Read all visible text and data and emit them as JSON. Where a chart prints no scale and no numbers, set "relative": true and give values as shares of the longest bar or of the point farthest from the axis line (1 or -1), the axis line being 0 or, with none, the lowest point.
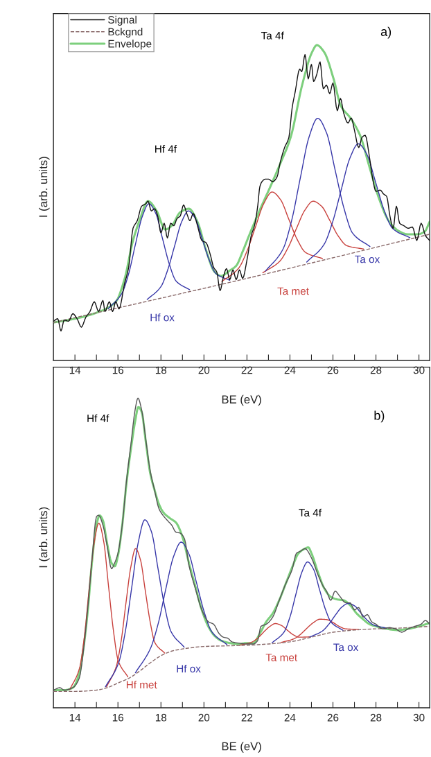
{
  "chart_data": [
    {
      "type": "line",
      "relative": true,
      "xlabel": "BE (eV)",
      "ylabel": "I (arb. units)",
      "xlim": [
        13,
        30.5
      ],
      "xticks": [
        14,
        {
          "value": 15,
          "label": null
        },
        16,
        {
          "value": 17,
          "label": null
        },
        18,
        {
          "value": 19,
          "label": null
        },
        20,
        {
          "value": 21,
          "label": null
        },
        22,
        {
          "value": 23,
          "label": null
        },
        24,
        {
          "value": 25,
          "label": null
        },
        26,
        {
          "value": 27,
          "label": null
        },
        28,
        {
          "value": 29,
          "label": null
        },
        30
      ],
      "legend": "top left",
      "grid": false,
      "marker": "none",
      "annotations": [
        "a)",
        "Hf 4f",
        "Ta 4f",
        "Hf ox",
        "Ta met",
        "Ta ox"
      ],
      "series": [
        {
          "name": "Signal",
          "color": "#111111",
          "line_style": "solid",
          "x": [
            13.0,
            13.2,
            13.35,
            13.5,
            13.7,
            13.9,
            14.1,
            14.3,
            14.5,
            14.7,
            14.9,
            15.1,
            15.3,
            15.4,
            15.6,
            15.75,
            15.9,
            16.05,
            16.3,
            16.5,
            16.7,
            16.9,
            17.1,
            17.3,
            17.4,
            17.55,
            17.7,
            17.85,
            18.0,
            18.15,
            18.3,
            18.45,
            18.6,
            18.75,
            18.9,
            19.05,
            19.2,
            19.35,
            19.5,
            19.7,
            19.9,
            20.1,
            20.3,
            20.45,
            20.6,
            20.75,
            20.9,
            21.05,
            21.2,
            21.35,
            21.5,
            21.65,
            21.8,
            22.0,
            22.2,
            22.35,
            22.5,
            22.6,
            22.7,
            22.85,
            23.0,
            23.2,
            23.4,
            23.55,
            23.75,
            23.95,
            24.1,
            24.25,
            24.45,
            24.55,
            24.7,
            24.85,
            25.0,
            25.1,
            25.25,
            25.4,
            25.55,
            25.7,
            25.85,
            26.0,
            26.2,
            26.35,
            26.5,
            26.7,
            26.85,
            27.0,
            27.2,
            27.35,
            27.5,
            27.7,
            27.85,
            28.0,
            28.2,
            28.35,
            28.5,
            28.65,
            28.8,
            28.95,
            29.1,
            29.3,
            29.5,
            29.7,
            29.9,
            30.1,
            30.3,
            30.5
          ],
          "values": [
            0.124,
            0.132,
            0.093,
            0.128,
            0.124,
            0.148,
            0.132,
            0.105,
            0.136,
            0.155,
            0.186,
            0.155,
            0.19,
            0.155,
            0.186,
            0.155,
            0.186,
            0.163,
            0.241,
            0.295,
            0.419,
            0.443,
            0.489,
            0.497,
            0.505,
            0.474,
            0.481,
            0.458,
            0.404,
            0.435,
            0.388,
            0.435,
            0.427,
            0.45,
            0.458,
            0.493,
            0.466,
            0.443,
            0.466,
            0.427,
            0.38,
            0.373,
            0.334,
            0.295,
            0.28,
            0.221,
            0.264,
            0.291,
            0.256,
            0.287,
            0.256,
            0.287,
            0.26,
            0.318,
            0.396,
            0.427,
            0.489,
            0.551,
            0.567,
            0.575,
            0.575,
            0.567,
            0.582,
            0.629,
            0.675,
            0.707,
            0.8,
            0.854,
            0.924,
            0.916,
            0.97,
            0.893,
            0.939,
            0.885,
            0.908,
            0.947,
            0.862,
            0.873,
            0.846,
            0.88,
            0.792,
            0.831,
            0.784,
            0.753,
            0.769,
            0.73,
            0.675,
            0.707,
            0.714,
            0.644,
            0.575,
            0.536,
            0.54,
            0.528,
            0.52,
            0.458,
            0.419,
            0.489,
            0.435,
            0.427,
            0.419,
            0.423,
            0.38,
            0.435,
            0.396,
            0.38
          ]
        },
        {
          "name": "Bckgnd",
          "color": "#8a6a6a",
          "line_style": "dashed",
          "x": [
            13,
            22,
            30.5
          ],
          "values": [
            0.12,
            0.26,
            0.4
          ]
        },
        {
          "name": "Envelope",
          "color": "#7dcf7d",
          "line_style": "solid",
          "x": [
            13.0,
            14.0,
            15.0,
            15.9,
            16.3,
            16.7,
            17.0,
            17.4,
            17.8,
            18.2,
            18.5,
            18.9,
            19.3,
            19.7,
            20.1,
            20.5,
            20.8,
            21.2,
            21.5,
            21.8,
            22.1,
            22.58,
            23.14,
            23.53,
            24.03,
            24.58,
            25.03,
            25.25,
            25.59,
            26.03,
            26.37,
            26.81,
            27.26,
            27.7,
            28.15,
            28.59,
            29.04,
            29.48,
            29.93,
            30.26,
            30.5
          ],
          "values": [
            0.12,
            0.132,
            0.151,
            0.186,
            0.256,
            0.38,
            0.443,
            0.505,
            0.474,
            0.415,
            0.427,
            0.47,
            0.481,
            0.439,
            0.349,
            0.28,
            0.268,
            0.285,
            0.3,
            0.345,
            0.396,
            0.474,
            0.559,
            0.621,
            0.707,
            0.877,
            0.978,
            1.0,
            0.978,
            0.893,
            0.807,
            0.769,
            0.714,
            0.613,
            0.512,
            0.443,
            0.411,
            0.4,
            0.4,
            0.408,
            0.44
          ]
        },
        {
          "color": "#3636a8",
          "line_style": "solid",
          "x": [
            15.55,
            16.18,
            16.5,
            16.81,
            17.13,
            17.44,
            17.76,
            18.07,
            18.39,
            18.7,
            19.33
          ],
          "values": [
            0.164,
            0.212,
            0.275,
            0.367,
            0.456,
            0.497,
            0.466,
            0.387,
            0.305,
            0.252,
            0.224
          ]
        },
        {
          "color": "#3636a8",
          "line_style": "solid",
          "x": [
            17.36,
            18.0,
            18.32,
            18.64,
            18.96,
            19.28,
            19.6,
            19.92,
            20.24,
            20.56,
            21.2
          ],
          "values": [
            0.193,
            0.234,
            0.288,
            0.364,
            0.439,
            0.474,
            0.45,
            0.385,
            0.319,
            0.275,
            0.254
          ]
        },
        {
          "color": "#c8403c",
          "line_style": "solid",
          "x": [
            20.83,
            21.61,
            22.0,
            22.39,
            22.78,
            23.17,
            23.56,
            23.95,
            24.34,
            24.73,
            25.51
          ],
          "values": [
            0.25,
            0.292,
            0.346,
            0.422,
            0.497,
            0.534,
            0.51,
            0.447,
            0.383,
            0.342,
            0.323
          ]
        },
        {
          "color": "#c8403c",
          "line_style": "solid",
          "x": [
            22.74,
            23.52,
            23.91,
            24.3,
            24.69,
            25.08,
            25.47,
            25.86,
            26.25,
            26.64,
            27.42
          ],
          "values": [
            0.278,
            0.314,
            0.357,
            0.418,
            0.476,
            0.505,
            0.489,
            0.443,
            0.394,
            0.364,
            0.353
          ]
        },
        {
          "color": "#3636a8",
          "line_style": "solid",
          "x": [
            22.86,
            23.67,
            24.08,
            24.48,
            24.89,
            25.29,
            25.7,
            26.1,
            26.51,
            26.91,
            27.72
          ],
          "values": [
            0.283,
            0.352,
            0.444,
            0.578,
            0.709,
            0.768,
            0.722,
            0.604,
            0.483,
            0.404,
            0.361
          ]
        },
        {
          "color": "#3636a8",
          "line_style": "solid",
          "x": [
            24.78,
            25.58,
            25.98,
            26.38,
            26.78,
            27.18,
            27.58,
            27.98,
            28.38,
            28.78,
            29.58
          ],
          "values": [
            0.312,
            0.367,
            0.438,
            0.54,
            0.64,
            0.687,
            0.653,
            0.566,
            0.476,
            0.418,
            0.389
          ]
        }
      ]
    },
    {
      "type": "line",
      "relative": true,
      "xlabel": "BE (eV)",
      "ylabel": "I (arb. units)",
      "xlim": [
        13,
        30.5
      ],
      "xticks": [
        14,
        {
          "value": 15,
          "label": null
        },
        16,
        {
          "value": 17,
          "label": null
        },
        18,
        {
          "value": 19,
          "label": null
        },
        20,
        {
          "value": 21,
          "label": null
        },
        22,
        {
          "value": 23,
          "label": null
        },
        24,
        {
          "value": 25,
          "label": null
        },
        26,
        {
          "value": 27,
          "label": null
        },
        28,
        {
          "value": 29,
          "label": null
        },
        30
      ],
      "grid": false,
      "marker": "none",
      "annotations": [
        "b)",
        "Hf 4f",
        "Hf met",
        "Hf ox",
        "Ta 4f",
        "Ta met",
        "Ta ox"
      ],
      "series": [
        {
          "color": "#555555",
          "line_style": "solid",
          "x": [
            13.0,
            13.3,
            13.5,
            13.9,
            14.2,
            14.4,
            14.6,
            14.8,
            15.0,
            15.1,
            15.3,
            15.5,
            15.7,
            15.85,
            16.0,
            16.2,
            16.4,
            16.6,
            16.8,
            16.93,
            17.1,
            17.3,
            17.5,
            17.7,
            17.9,
            18.1,
            18.3,
            18.5,
            18.7,
            18.9,
            19.1,
            19.3,
            19.6,
            19.9,
            20.2,
            20.45,
            20.7,
            20.9,
            21.1,
            21.3,
            21.6,
            22.0,
            22.3,
            22.5,
            22.65,
            22.9,
            23.2,
            23.5,
            23.8,
            24.1,
            24.3,
            24.5,
            24.7,
            25.0,
            25.3,
            25.55,
            25.7,
            25.9,
            26.1,
            26.3,
            26.6,
            26.8,
            27.0,
            27.2,
            27.4,
            27.6,
            27.8,
            28.0,
            28.3,
            28.6,
            28.9,
            29.2,
            29.5,
            29.8,
            30.1,
            30.3,
            30.5
          ],
          "values": [
            0.057,
            0.065,
            0.057,
            0.065,
            0.095,
            0.187,
            0.324,
            0.484,
            0.617,
            0.622,
            0.59,
            0.522,
            0.449,
            0.468,
            0.499,
            0.59,
            0.735,
            0.849,
            0.963,
            1.0,
            0.963,
            0.864,
            0.765,
            0.704,
            0.644,
            0.621,
            0.605,
            0.59,
            0.567,
            0.564,
            0.545,
            0.461,
            0.385,
            0.316,
            0.278,
            0.27,
            0.24,
            0.228,
            0.225,
            0.213,
            0.209,
            0.206,
            0.206,
            0.217,
            0.263,
            0.27,
            0.293,
            0.347,
            0.4,
            0.446,
            0.499,
            0.506,
            0.514,
            0.484,
            0.43,
            0.392,
            0.377,
            0.347,
            0.377,
            0.362,
            0.339,
            0.339,
            0.316,
            0.324,
            0.293,
            0.301,
            0.278,
            0.27,
            0.255,
            0.259,
            0.255,
            0.244,
            0.255,
            0.263,
            0.27,
            0.282,
            0.27
          ]
        },
        {
          "color": "#8a6a6a",
          "line_style": "dashed",
          "x": [
            13,
            14,
            15,
            15.5,
            16,
            16.5,
            17,
            17.5,
            18,
            18.5,
            19,
            20,
            21,
            22,
            23,
            24,
            25,
            26,
            27,
            28,
            29,
            30.5
          ],
          "values": [
            0.053,
            0.053,
            0.057,
            0.065,
            0.08,
            0.095,
            0.118,
            0.145,
            0.168,
            0.183,
            0.19,
            0.198,
            0.2,
            0.202,
            0.206,
            0.213,
            0.228,
            0.244,
            0.251,
            0.255,
            0.257,
            0.263
          ]
        },
        {
          "color": "#7dcf7d",
          "line_style": "solid",
          "x": [
            13.0,
            13.5,
            13.9,
            14.2,
            14.4,
            14.6,
            14.8,
            15.0,
            15.15,
            15.3,
            15.5,
            15.7,
            15.85,
            16.0,
            16.2,
            16.4,
            16.6,
            16.8,
            16.95,
            17.1,
            17.3,
            17.5,
            17.7,
            17.9,
            18.1,
            18.4,
            18.7,
            19.0,
            19.3,
            19.6,
            19.9,
            20.2,
            20.5,
            20.8,
            21.2,
            21.6,
            22.0,
            22.3,
            22.6,
            22.9,
            23.2,
            23.5,
            23.8,
            24.1,
            24.4,
            24.7,
            24.85,
            25.0,
            25.3,
            25.6,
            25.9,
            26.2,
            26.5,
            26.8,
            27.1,
            27.4,
            27.7,
            28.0,
            28.5,
            29.0,
            29.5,
            30.0,
            30.5
          ],
          "values": [
            0.057,
            0.057,
            0.065,
            0.11,
            0.194,
            0.316,
            0.476,
            0.59,
            0.621,
            0.605,
            0.529,
            0.468,
            0.457,
            0.491,
            0.59,
            0.727,
            0.834,
            0.925,
            0.971,
            0.956,
            0.857,
            0.758,
            0.704,
            0.659,
            0.632,
            0.613,
            0.598,
            0.552,
            0.468,
            0.392,
            0.316,
            0.263,
            0.232,
            0.217,
            0.209,
            0.206,
            0.209,
            0.209,
            0.24,
            0.278,
            0.305,
            0.347,
            0.4,
            0.453,
            0.499,
            0.514,
            0.518,
            0.499,
            0.438,
            0.385,
            0.358,
            0.35,
            0.347,
            0.331,
            0.305,
            0.286,
            0.27,
            0.263,
            0.255,
            0.251,
            0.255,
            0.263,
            0.274
          ]
        },
        {
          "color": "#c8403c",
          "line_style": "solid",
          "x": [
            13.76,
            14.21,
            14.44,
            14.66,
            14.89,
            15.11,
            15.34,
            15.56,
            15.79,
            16.01,
            16.46
          ],
          "values": [
            0.059,
            0.127,
            0.23,
            0.383,
            0.531,
            0.596,
            0.536,
            0.394,
            0.249,
            0.153,
            0.1
          ]
        },
        {
          "color": "#c8403c",
          "line_style": "solid",
          "x": [
            15.47,
            15.92,
            16.15,
            16.37,
            16.6,
            16.82,
            17.05,
            17.27,
            17.5,
            17.72,
            18.17
          ],
          "values": [
            0.068,
            0.133,
            0.216,
            0.337,
            0.455,
            0.514,
            0.477,
            0.379,
            0.277,
            0.21,
            0.177
          ]
        },
        {
          "color": "#3636a8",
          "line_style": "solid",
          "x": [
            15.42,
            16.03,
            16.34,
            16.64,
            16.95,
            17.25,
            17.56,
            17.86,
            18.17,
            18.47,
            19.08
          ],
          "values": [
            0.068,
            0.145,
            0.245,
            0.388,
            0.536,
            0.607,
            0.568,
            0.451,
            0.328,
            0.246,
            0.196
          ]
        },
        {
          "color": "#3636a8",
          "line_style": "solid",
          "x": [
            16.81,
            17.52,
            17.88,
            18.23,
            18.59,
            18.94,
            19.3,
            19.65,
            20.01,
            20.36,
            21.07
          ],
          "values": [
            0.113,
            0.193,
            0.274,
            0.385,
            0.489,
            0.535,
            0.497,
            0.405,
            0.31,
            0.246,
            0.204
          ]
        },
        {
          "color": "#c8403c",
          "line_style": "solid",
          "x": [
            21.67,
            22.22,
            22.5,
            22.77,
            23.05,
            23.32,
            23.6,
            23.87,
            24.15,
            24.42,
            24.97
          ],
          "values": [
            0.202,
            0.212,
            0.225,
            0.244,
            0.262,
            0.272,
            0.266,
            0.251,
            0.236,
            0.228,
            0.229
          ]
        },
        {
          "color": "#c8403c",
          "line_style": "solid",
          "x": [
            23.59,
            24.19,
            24.49,
            24.79,
            25.09,
            25.39,
            25.69,
            25.99,
            26.29,
            26.59,
            27.19
          ],
          "values": [
            0.211,
            0.223,
            0.237,
            0.257,
            0.275,
            0.286,
            0.285,
            0.276,
            0.263,
            0.255,
            0.253
          ]
        },
        {
          "color": "#3636a8",
          "line_style": "solid",
          "x": [
            23.17,
            23.72,
            24.0,
            24.27,
            24.55,
            24.82,
            25.1,
            25.37,
            25.65,
            25.92,
            26.47
          ],
          "values": [
            0.21,
            0.244,
            0.293,
            0.365,
            0.437,
            0.471,
            0.447,
            0.383,
            0.318,
            0.276,
            0.25
          ]
        },
        {
          "color": "#3636a8",
          "line_style": "solid",
          "x": [
            24.91,
            25.51,
            25.81,
            26.11,
            26.41,
            26.71,
            27.01,
            27.31,
            27.61,
            27.91,
            28.51
          ],
          "values": [
            0.228,
            0.248,
            0.27,
            0.299,
            0.325,
            0.337,
            0.329,
            0.305,
            0.282,
            0.267,
            0.257
          ]
        }
      ]
    }
  ]
}
